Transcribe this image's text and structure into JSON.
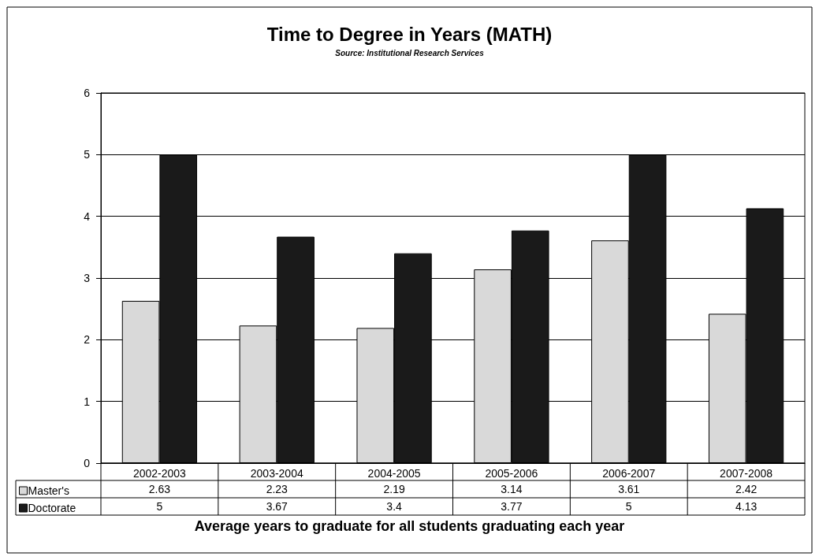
{
  "chart_data": {
    "type": "bar",
    "title": "Time to Degree in Years (MATH)",
    "annotations": [
      "Source: Institutional Research Services"
    ],
    "xlabel": "Average years to graduate for all students graduating each year",
    "categories": [
      "2002-2003",
      "2003-2004",
      "2004-2005",
      "2005-2006",
      "2006-2007",
      "2007-2008"
    ],
    "series": [
      {
        "name": "Master's",
        "color": "#d9d9d9",
        "values": [
          2.63,
          2.23,
          2.19,
          3.14,
          3.61,
          2.42
        ]
      },
      {
        "name": "Doctorate",
        "color": "#1a1a1a",
        "values": [
          5,
          3.67,
          3.4,
          3.77,
          5,
          4.13
        ]
      }
    ],
    "ylim": [
      0,
      6
    ],
    "yticks": [
      0,
      1,
      2,
      3,
      4,
      5,
      6
    ],
    "grid": "y",
    "legend": "bottom left",
    "data_labels": true
  }
}
